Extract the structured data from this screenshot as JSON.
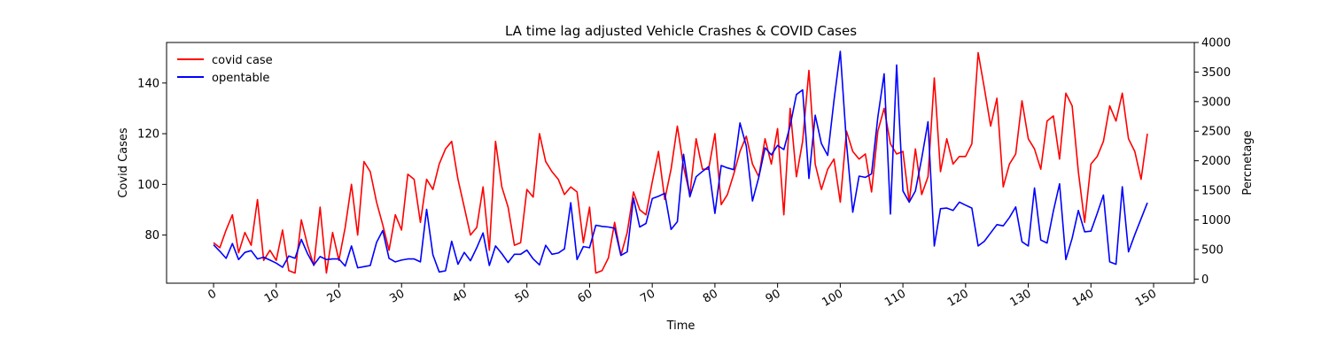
{
  "chart_data": {
    "type": "line",
    "title": "LA time lag adjusted Vehicle Crashes & COVID Cases",
    "xlabel": "Time",
    "ylabel_left": "Covid Cases",
    "ylabel_right": "Percnetage",
    "xlim": [
      -7.5,
      156.5
    ],
    "ylim_left": [
      61,
      156
    ],
    "ylim_right": [
      -70,
      4000
    ],
    "x_ticks": [
      0,
      10,
      20,
      30,
      40,
      50,
      60,
      70,
      80,
      90,
      100,
      110,
      120,
      130,
      140,
      150
    ],
    "y_ticks_left": [
      80,
      100,
      120,
      140
    ],
    "y_ticks_right": [
      0,
      500,
      1000,
      1500,
      2000,
      2500,
      3000,
      3500,
      4000
    ],
    "legend_position": "top-left",
    "grid": false,
    "series": [
      {
        "name": "covid case",
        "axis": "left",
        "color": "#ff0000",
        "values": [
          77,
          75,
          82,
          88,
          73,
          81,
          76,
          94,
          70,
          74,
          70,
          82,
          66,
          65,
          86,
          76,
          68,
          91,
          65,
          81,
          70,
          83,
          100,
          80,
          109,
          105,
          93,
          84,
          74,
          88,
          82,
          104,
          102,
          85,
          102,
          98,
          108,
          114,
          117,
          102,
          91,
          80,
          83,
          99,
          74,
          117,
          99,
          91,
          76,
          77,
          98,
          95,
          120,
          109,
          105,
          102,
          96,
          99,
          97,
          77,
          91,
          65,
          66,
          71,
          85,
          72,
          81,
          97,
          90,
          88,
          101,
          113,
          94,
          106,
          123,
          107,
          96,
          118,
          106,
          106,
          120,
          92,
          96,
          104,
          113,
          119,
          108,
          103,
          118,
          108,
          122,
          88,
          130,
          103,
          117,
          145,
          108,
          98,
          106,
          110,
          93,
          121,
          113,
          110,
          112,
          97,
          121,
          130,
          116,
          112,
          113,
          93,
          114,
          96,
          103,
          142,
          105,
          118,
          108,
          111,
          111,
          116,
          152,
          138,
          123,
          134,
          99,
          108,
          112,
          133,
          118,
          114,
          106,
          125,
          127,
          110,
          136,
          131,
          105,
          85,
          108,
          111,
          117,
          131,
          125,
          136,
          118,
          113,
          102,
          120
        ]
      },
      {
        "name": "opentable",
        "axis": "right",
        "color": "#0000ff",
        "values": [
          580,
          470,
          350,
          600,
          330,
          450,
          480,
          340,
          370,
          320,
          270,
          200,
          390,
          350,
          670,
          430,
          240,
          380,
          330,
          340,
          340,
          220,
          560,
          190,
          210,
          230,
          620,
          820,
          350,
          290,
          320,
          340,
          340,
          290,
          1180,
          410,
          120,
          140,
          640,
          250,
          450,
          310,
          530,
          780,
          230,
          560,
          430,
          280,
          420,
          420,
          490,
          340,
          240,
          570,
          420,
          440,
          510,
          1290,
          330,
          550,
          530,
          910,
          890,
          880,
          860,
          400,
          460,
          1370,
          880,
          940,
          1360,
          1400,
          1450,
          840,
          970,
          2110,
          1390,
          1730,
          1820,
          1900,
          1110,
          1920,
          1880,
          1850,
          2640,
          2250,
          1320,
          1720,
          2220,
          2100,
          2260,
          2190,
          2590,
          3120,
          3200,
          1700,
          2770,
          2290,
          2090,
          3020,
          3850,
          2300,
          1130,
          1740,
          1720,
          1780,
          2740,
          3470,
          1100,
          3620,
          1490,
          1300,
          1490,
          2040,
          2660,
          560,
          1190,
          1200,
          1160,
          1300,
          1250,
          1200,
          560,
          640,
          780,
          920,
          900,
          1040,
          1220,
          630,
          560,
          1540,
          660,
          610,
          1150,
          1610,
          330,
          690,
          1160,
          800,
          810,
          1110,
          1420,
          290,
          250,
          1560,
          460,
          750,
          1020,
          1290
        ]
      }
    ]
  }
}
